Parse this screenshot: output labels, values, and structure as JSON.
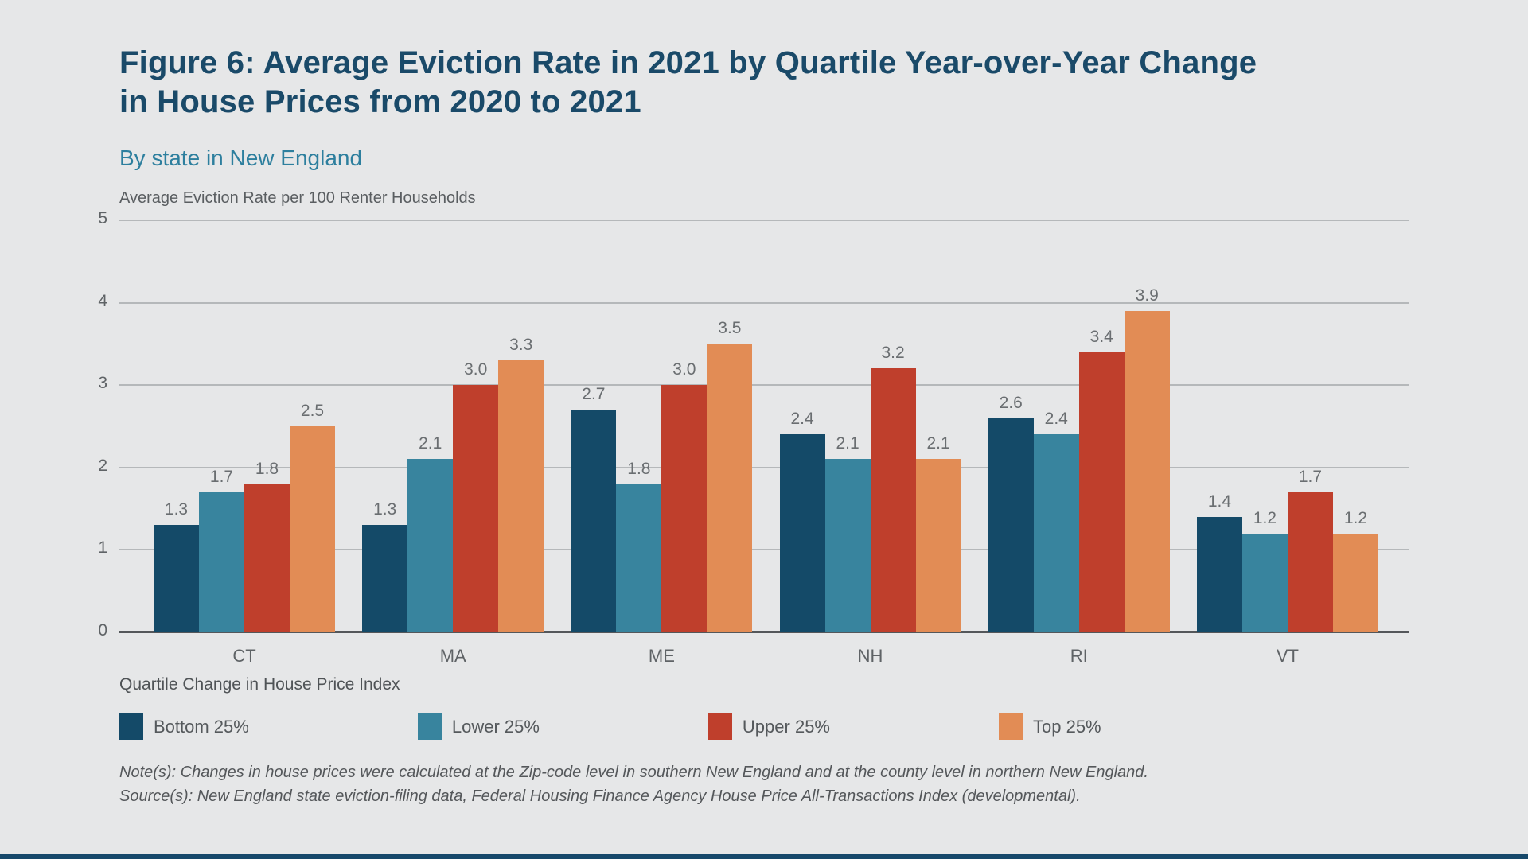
{
  "page": {
    "background_color": "#e6e7e8",
    "footer_bar_color": "#17496b"
  },
  "header": {
    "title_line1": "Figure 6: Average Eviction Rate in 2021 by Quartile Year-over-Year Change",
    "title_line2": "in House Prices from 2020 to 2021",
    "subtitle": "By state in New England"
  },
  "chart_data": {
    "type": "bar",
    "title": "Figure 6: Average Eviction Rate in 2021 by Quartile Year-over-Year Change in House Prices from 2020 to 2021",
    "subtitle": "By state in New England",
    "ylabel": "Average Eviction Rate per 100 Renter Households",
    "xlabel": "Quartile Change in House Price Index",
    "categories": [
      "CT",
      "MA",
      "ME",
      "NH",
      "RI",
      "VT"
    ],
    "series": [
      {
        "name": "Bottom 25%",
        "color": "#144a68",
        "values": [
          1.3,
          1.3,
          2.7,
          2.4,
          2.6,
          1.4
        ]
      },
      {
        "name": "Lower 25%",
        "color": "#38849e",
        "values": [
          1.7,
          2.1,
          1.8,
          2.1,
          2.4,
          1.2
        ]
      },
      {
        "name": "Upper 25%",
        "color": "#bf3f2c",
        "values": [
          1.8,
          3.0,
          3.0,
          3.2,
          3.4,
          1.7
        ]
      },
      {
        "name": "Top 25%",
        "color": "#e28c55",
        "values": [
          2.5,
          3.3,
          3.5,
          2.1,
          3.9,
          1.2
        ]
      }
    ],
    "ylim": [
      0,
      5
    ],
    "yticks": [
      0,
      1,
      2,
      3,
      4,
      5
    ],
    "grid": true,
    "legend_position": "bottom",
    "value_labels": true,
    "value_label_format": "one_decimal"
  },
  "notes": {
    "note": "Note(s): Changes in house prices were calculated at the Zip-code level in southern New England and at the county level in northern New England.",
    "source": "Source(s): New England state eviction-filing data, Federal Housing Finance Agency House Price All-Transactions Index (developmental)."
  }
}
